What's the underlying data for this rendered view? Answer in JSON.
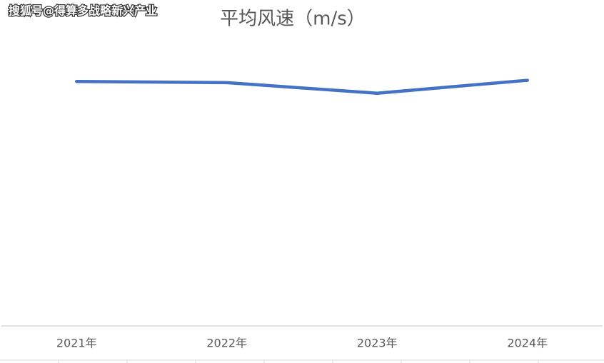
{
  "watermark": "搜狐号@得算多战略新兴产业",
  "chart_data": {
    "type": "line",
    "title": "平均风速（m/s）",
    "categories": [
      "2021年",
      "2022年",
      "2023年",
      "2024年"
    ],
    "series": [
      {
        "name": "平均风速",
        "color": "#4472c4",
        "values": [
          2.08,
          2.07,
          1.98,
          2.09
        ]
      }
    ],
    "ylim": [
      0,
      2.5
    ]
  }
}
